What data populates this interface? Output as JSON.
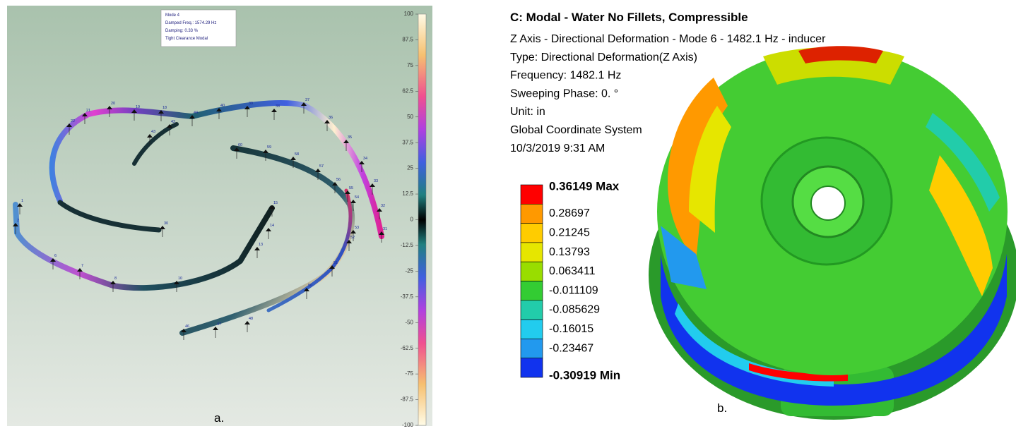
{
  "panel_a": {
    "info": [
      "Mode 4",
      "Damped Freq.: 1574.29 Hz",
      "Damping: 0.33 %",
      "Tight Clearance Modal"
    ],
    "colorbar_ticks": [
      100,
      87.5,
      75,
      62.5,
      50,
      37.5,
      25,
      12.5,
      0,
      -12.5,
      -25,
      -37.5,
      -50,
      -62.5,
      -75,
      -87.5,
      -100
    ],
    "node_labels": [
      "20",
      "19",
      "18",
      "21",
      "44",
      "40",
      "39",
      "38",
      "37",
      "22",
      "36",
      "43",
      "42",
      "35",
      "60",
      "59",
      "58",
      "34",
      "57",
      "33",
      "56",
      "55",
      "54",
      "32",
      "31",
      "15",
      "30",
      "14",
      "53",
      "52",
      "13",
      "51",
      "6",
      "7",
      "8",
      "10",
      "50",
      "46",
      "47",
      "48",
      "1",
      "2"
    ],
    "caption": "a."
  },
  "panel_b": {
    "title": "C: Modal - Water No Fillets, Compressible",
    "info_lines": [
      "Z Axis - Directional Deformation - Mode 6 - 1482.1 Hz - inducer",
      "Type: Directional Deformation(Z Axis)",
      "Frequency: 1482.1 Hz",
      "Sweeping Phase: 0. °",
      "Unit: in",
      "Global Coordinate System",
      "10/3/2019 9:31 AM"
    ],
    "legend": [
      {
        "label": "0.36149 Max",
        "color": "#ff0000"
      },
      {
        "label": "0.28697",
        "color": "#ff9900"
      },
      {
        "label": "0.21245",
        "color": "#ffcc00"
      },
      {
        "label": "0.13793",
        "color": "#e6e600"
      },
      {
        "label": "0.063411",
        "color": "#99dd00"
      },
      {
        "label": "-0.011109",
        "color": "#33cc33"
      },
      {
        "label": "-0.085629",
        "color": "#22ccaa"
      },
      {
        "label": "-0.16015",
        "color": "#22ccee"
      },
      {
        "label": "-0.23467",
        "color": "#2299ee"
      },
      {
        "label": "-0.30919 Min",
        "color": "#1133ee"
      }
    ],
    "caption": "b."
  }
}
